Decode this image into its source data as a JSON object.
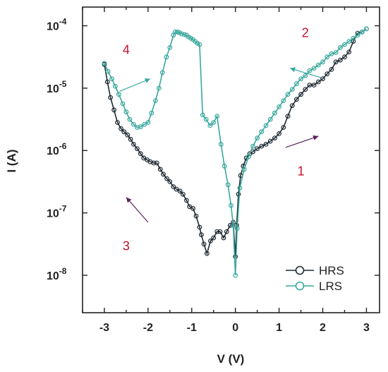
{
  "chart_data": {
    "type": "line",
    "title": "",
    "xlabel": "V (V)",
    "ylabel": "I (A)",
    "xlim": [
      -3.5,
      3.3
    ],
    "ylim": [
      -8.6,
      -3.7
    ],
    "y_scale": "log",
    "grid": false,
    "legend_placement": "bottom-right",
    "x_ticks": [
      -3,
      -2,
      -1,
      0,
      1,
      2,
      3
    ],
    "x_tick_labels": [
      "-3",
      "-2",
      "-1",
      "0",
      "1",
      "2",
      "3"
    ],
    "y_ticks": [
      -8,
      -7,
      -6,
      -5,
      -4
    ],
    "y_tick_labels": [
      {
        "base": "10",
        "exp": "-8"
      },
      {
        "base": "10",
        "exp": "-7"
      },
      {
        "base": "10",
        "exp": "-6"
      },
      {
        "base": "10",
        "exp": "-5"
      },
      {
        "base": "10",
        "exp": "-4"
      }
    ],
    "series": [
      {
        "name": "HRS",
        "color": "#1f2a33",
        "x": [
          -3.0,
          -2.93,
          -2.86,
          -2.78,
          -2.7,
          -2.62,
          -2.55,
          -2.47,
          -2.4,
          -2.33,
          -2.25,
          -2.17,
          -2.1,
          -2.02,
          -1.95,
          -1.87,
          -1.8,
          -1.72,
          -1.65,
          -1.57,
          -1.5,
          -1.42,
          -1.35,
          -1.27,
          -1.2,
          -1.12,
          -1.05,
          -0.97,
          -0.9,
          -0.82,
          -0.78,
          -0.72,
          -0.65,
          -0.57,
          -0.5,
          -0.42,
          -0.35,
          -0.27,
          -0.2,
          -0.12,
          -0.05,
          0.0,
          0.03,
          0.07,
          0.12,
          0.18,
          0.25,
          0.33,
          0.4,
          0.5,
          0.6,
          0.7,
          0.8,
          0.9,
          1.0,
          1.1,
          1.2,
          1.3,
          1.4,
          1.5,
          1.6,
          1.7,
          1.8,
          1.9,
          2.0,
          2.1,
          2.2,
          2.3,
          2.4,
          2.5,
          2.6,
          2.7,
          2.8,
          2.9,
          3.0
        ],
        "log10_I": [
          -4.62,
          -4.9,
          -5.15,
          -5.35,
          -5.55,
          -5.65,
          -5.7,
          -5.75,
          -5.82,
          -5.9,
          -5.97,
          -6.05,
          -6.12,
          -6.15,
          -6.18,
          -6.2,
          -6.2,
          -6.3,
          -6.38,
          -6.45,
          -6.5,
          -6.58,
          -6.62,
          -6.65,
          -6.7,
          -6.8,
          -6.9,
          -6.93,
          -7.05,
          -7.23,
          -7.35,
          -7.5,
          -7.65,
          -7.45,
          -7.4,
          -7.3,
          -7.3,
          -7.4,
          -7.3,
          -7.2,
          -7.15,
          -7.7,
          -7.2,
          -6.7,
          -6.4,
          -6.25,
          -6.12,
          -6.05,
          -6.02,
          -5.97,
          -5.93,
          -5.9,
          -5.85,
          -5.8,
          -5.73,
          -5.63,
          -5.45,
          -5.28,
          -5.18,
          -5.1,
          -5.02,
          -4.95,
          -4.95,
          -4.9,
          -4.85,
          -4.77,
          -4.7,
          -4.58,
          -4.55,
          -4.5,
          -4.42,
          -4.25,
          -4.12,
          -4.1,
          -4.05
        ]
      },
      {
        "name": "LRS",
        "color": "#39a89e",
        "x": [
          -3.0,
          -2.92,
          -2.83,
          -2.75,
          -2.67,
          -2.58,
          -2.5,
          -2.42,
          -2.33,
          -2.25,
          -2.17,
          -2.08,
          -2.0,
          -1.92,
          -1.83,
          -1.75,
          -1.67,
          -1.58,
          -1.5,
          -1.42,
          -1.38,
          -1.33,
          -1.28,
          -1.23,
          -1.17,
          -1.12,
          -1.07,
          -1.02,
          -0.97,
          -0.92,
          -0.87,
          -0.82,
          -0.75,
          -0.67,
          -0.58,
          -0.5,
          -0.42,
          -0.33,
          -0.25,
          -0.17,
          -0.1,
          -0.05,
          0.0,
          0.04,
          0.1,
          0.2,
          0.3,
          0.4,
          0.5,
          0.6,
          0.7,
          0.8,
          0.9,
          1.0,
          1.1,
          1.2,
          1.3,
          1.4,
          1.5,
          1.6,
          1.7,
          1.8,
          1.9,
          2.0,
          2.1,
          2.2,
          2.3,
          2.4,
          2.5,
          2.6,
          2.7,
          2.8,
          2.9,
          3.0
        ],
        "log10_I": [
          -4.6,
          -4.73,
          -4.85,
          -4.97,
          -5.1,
          -5.25,
          -5.38,
          -5.5,
          -5.58,
          -5.63,
          -5.62,
          -5.58,
          -5.55,
          -5.4,
          -5.2,
          -5.0,
          -4.75,
          -4.5,
          -4.35,
          -4.15,
          -4.1,
          -4.1,
          -4.11,
          -4.13,
          -4.14,
          -4.15,
          -4.18,
          -4.2,
          -4.22,
          -4.25,
          -4.28,
          -4.3,
          -5.43,
          -5.5,
          -5.6,
          -5.55,
          -5.45,
          -5.9,
          -6.25,
          -6.55,
          -6.88,
          -7.2,
          -8.0,
          -7.25,
          -6.6,
          -6.3,
          -6.1,
          -5.93,
          -5.8,
          -5.7,
          -5.6,
          -5.5,
          -5.4,
          -5.3,
          -5.2,
          -5.1,
          -5.02,
          -4.93,
          -4.85,
          -4.8,
          -4.72,
          -4.68,
          -4.63,
          -4.58,
          -4.5,
          -4.45,
          -4.43,
          -4.35,
          -4.3,
          -4.25,
          -4.2,
          -4.15,
          -4.1,
          -4.05
        ]
      }
    ],
    "annotations": [
      {
        "text": "1",
        "x": 1.5,
        "y_log10": -6.4,
        "color": "#c8102e"
      },
      {
        "text": "2",
        "x": 1.6,
        "y_log10": -4.18,
        "color": "#c8102e"
      },
      {
        "text": "3",
        "x": -2.5,
        "y_log10": -7.6,
        "color": "#c8102e"
      },
      {
        "text": "4",
        "x": -2.5,
        "y_log10": -4.45,
        "color": "#c8102e"
      }
    ],
    "arrows": [
      {
        "from": {
          "x": 1.15,
          "y_log10": -5.95
        },
        "to": {
          "x": 1.9,
          "y_log10": -5.77
        },
        "color": "#5a1f5e"
      },
      {
        "from": {
          "x": 1.95,
          "y_log10": -4.83
        },
        "to": {
          "x": 1.25,
          "y_log10": -4.68
        },
        "color": "#39a89e"
      },
      {
        "from": {
          "x": -2.0,
          "y_log10": -7.15
        },
        "to": {
          "x": -2.5,
          "y_log10": -6.75
        },
        "color": "#5a1f5e"
      },
      {
        "from": {
          "x": -2.65,
          "y_log10": -5.05
        },
        "to": {
          "x": -1.95,
          "y_log10": -4.85
        },
        "color": "#39a89e"
      }
    ]
  }
}
